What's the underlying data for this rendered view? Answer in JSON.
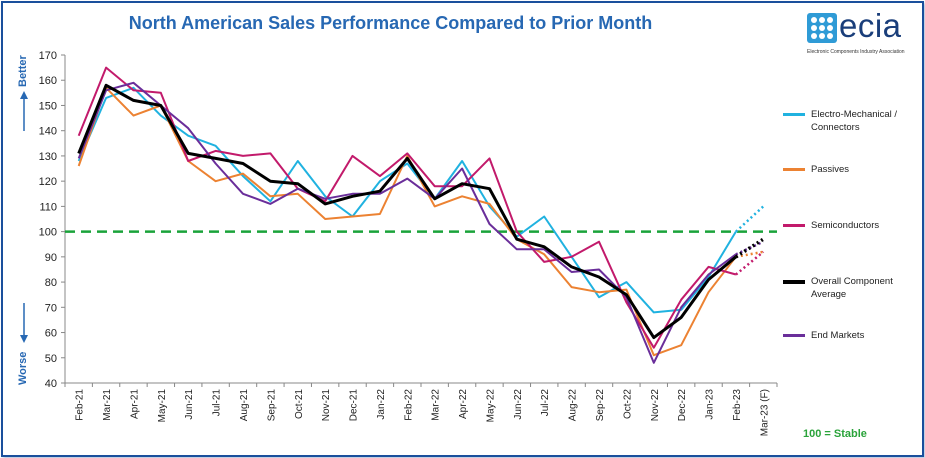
{
  "colors": {
    "electro": "#20b2e0",
    "passives": "#ec8232",
    "semis": "#c21a6b",
    "overall": "#000000",
    "endmarkets": "#6a2e9a",
    "stable": "#1aa33a",
    "title": "#2768b3"
  },
  "logo": {
    "word": "ecia",
    "subtitle": "Electronic Components Industry Association"
  },
  "labels": {
    "better": "Better",
    "worse": "Worse",
    "stable_note": "100 = Stable"
  },
  "chart_data": {
    "type": "line",
    "title": "North American Sales Performance Compared to Prior Month",
    "ylim": [
      40,
      170
    ],
    "yticks": [
      40,
      50,
      60,
      70,
      80,
      90,
      100,
      110,
      120,
      130,
      140,
      150,
      160,
      170
    ],
    "grid": false,
    "legend_position": "right",
    "reference_line": {
      "y": 100,
      "label": "100 = Stable"
    },
    "categories": [
      "Feb-21",
      "Mar-21",
      "Apr-21",
      "May-21",
      "Jun-21",
      "Jul-21",
      "Aug-21",
      "Sep-21",
      "Oct-21",
      "Nov-21",
      "Dec-21",
      "Jan-22",
      "Feb-22",
      "Mar-22",
      "Apr-22",
      "May-22",
      "Jun-22",
      "Jul-22",
      "Aug-22",
      "Sep-22",
      "Oct-22",
      "Nov-22",
      "Dec-22",
      "Jan-23",
      "Feb-23",
      "Mar-23 (F)"
    ],
    "forecast_from_index": 24,
    "series": [
      {
        "name": "Electro-Mechanical / Connectors",
        "color_key": "electro",
        "values": [
          128,
          153,
          157,
          146,
          138,
          134,
          122,
          112,
          128,
          114,
          106,
          120,
          127,
          113,
          128,
          110,
          98,
          106,
          90,
          74,
          80,
          68,
          69,
          82,
          100,
          110
        ]
      },
      {
        "name": "Passives",
        "color_key": "passives",
        "values": [
          126,
          157,
          146,
          150,
          128,
          120,
          123,
          114,
          115,
          105,
          106,
          107,
          130,
          110,
          114,
          111,
          97,
          91,
          78,
          76,
          77,
          51,
          55,
          76,
          90,
          92
        ]
      },
      {
        "name": "Semiconductors",
        "color_key": "semis",
        "values": [
          138,
          165,
          156,
          155,
          128,
          132,
          130,
          131,
          117,
          112,
          130,
          122,
          131,
          118,
          118,
          129,
          100,
          88,
          90,
          96,
          72,
          54,
          73,
          86,
          83,
          92
        ]
      },
      {
        "name": "Overall Component Average",
        "color_key": "overall",
        "values": [
          131,
          158,
          152,
          150,
          131,
          129,
          127,
          120,
          119,
          111,
          114,
          116,
          129,
          113,
          119,
          117,
          97,
          94,
          86,
          82,
          75,
          58,
          66,
          81,
          90,
          97
        ]
      },
      {
        "name": "End Markets",
        "color_key": "endmarkets",
        "values": [
          129,
          156,
          159,
          150,
          141,
          127,
          115,
          111,
          117,
          113,
          115,
          115,
          121,
          113,
          125,
          103,
          93,
          93,
          84,
          85,
          74,
          48,
          70,
          83,
          91,
          96
        ]
      }
    ]
  }
}
